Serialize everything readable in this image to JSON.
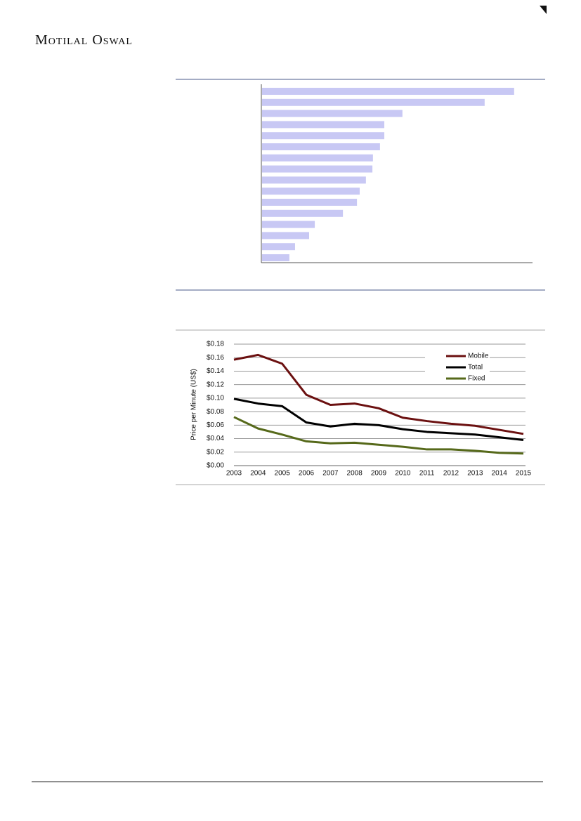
{
  "header": {
    "brand": "Motilal Oswal"
  },
  "chart_data": [
    {
      "type": "barh",
      "categories": [
        null,
        null,
        null,
        null,
        null,
        null,
        null,
        null,
        null,
        null,
        null,
        null,
        null,
        null,
        null,
        null
      ],
      "values": [
        93.2,
        82.3,
        51.9,
        45.2,
        45.2,
        43.6,
        41.0,
        40.8,
        38.4,
        36.1,
        35.1,
        29.9,
        19.5,
        17.4,
        12.2,
        10.1
      ],
      "color": "#c8c8f4",
      "xlim": [
        0,
        100
      ]
    },
    {
      "type": "line",
      "ylabel": "Price per Minute (US$)",
      "categories": [
        "2003",
        "2004",
        "2005",
        "2006",
        "2007",
        "2008",
        "2009",
        "2010",
        "2011",
        "2012",
        "2013",
        "2014",
        "2015"
      ],
      "series": [
        {
          "name": "Mobile",
          "color": "#6b1010",
          "values": [
            0.157,
            0.164,
            0.151,
            0.105,
            0.09,
            0.092,
            0.085,
            0.071,
            0.066,
            0.062,
            0.059,
            0.053,
            0.047
          ]
        },
        {
          "name": "Total",
          "color": "#000000",
          "values": [
            0.099,
            0.092,
            0.088,
            0.064,
            0.058,
            0.062,
            0.06,
            0.054,
            0.05,
            0.048,
            0.046,
            0.042,
            0.038
          ]
        },
        {
          "name": "Fixed",
          "color": "#56691a",
          "values": [
            0.072,
            0.055,
            0.046,
            0.036,
            0.033,
            0.034,
            0.031,
            0.028,
            0.024,
            0.024,
            0.022,
            0.019,
            0.018
          ]
        }
      ],
      "ylim": [
        0,
        0.18
      ],
      "yticks": [
        {
          "value": 0,
          "label": "$0.00"
        },
        {
          "value": 0.02,
          "label": "$0.02"
        },
        {
          "value": 0.04,
          "label": "$0.04"
        },
        {
          "value": 0.06,
          "label": "$0.06"
        },
        {
          "value": 0.08,
          "label": "$0.08"
        },
        {
          "value": 0.1,
          "label": "$0.10"
        },
        {
          "value": 0.12,
          "label": "$0.12"
        },
        {
          "value": 0.14,
          "label": "$0.14"
        },
        {
          "value": 0.16,
          "label": "$0.16"
        },
        {
          "value": 0.18,
          "label": "$0.18"
        }
      ],
      "grid": true,
      "legend": "top-right"
    }
  ]
}
